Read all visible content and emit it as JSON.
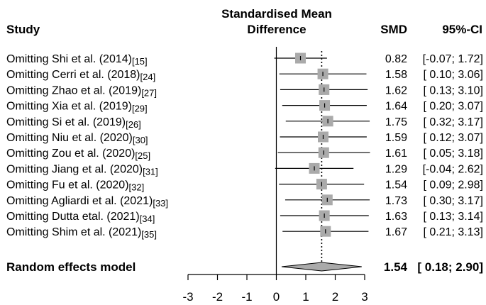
{
  "chart_data": {
    "type": "forest",
    "header": {
      "study": "Study",
      "plot_title_line1": "Standardised Mean",
      "plot_title_line2": "Difference",
      "smd": "SMD",
      "ci": "95%-CI"
    },
    "rows": [
      {
        "study": "Omitting Shi et al. (2014)",
        "ref": "[15]",
        "smd": 0.82,
        "lower": -0.07,
        "upper": 1.72,
        "smd_text": "0.82",
        "ci_text": "[-0.07; 1.72]"
      },
      {
        "study": "Omitting Cerri et al. (2018)",
        "ref": "[24]",
        "smd": 1.58,
        "lower": 0.1,
        "upper": 3.06,
        "smd_text": "1.58",
        "ci_text": "[ 0.10; 3.06]"
      },
      {
        "study": "Omitting Zhao et al. (2019)",
        "ref": "[27]",
        "smd": 1.62,
        "lower": 0.13,
        "upper": 3.1,
        "smd_text": "1.62",
        "ci_text": "[ 0.13; 3.10]"
      },
      {
        "study": "Omitting Xia et al. (2019)",
        "ref": "[29]",
        "smd": 1.64,
        "lower": 0.2,
        "upper": 3.07,
        "smd_text": "1.64",
        "ci_text": "[ 0.20; 3.07]"
      },
      {
        "study": "Omitting Si et al. (2019)",
        "ref": "[26]",
        "smd": 1.75,
        "lower": 0.32,
        "upper": 3.17,
        "smd_text": "1.75",
        "ci_text": "[ 0.32; 3.17]"
      },
      {
        "study": "Omitting Niu et al. (2020)",
        "ref": "[30]",
        "smd": 1.59,
        "lower": 0.12,
        "upper": 3.07,
        "smd_text": "1.59",
        "ci_text": "[ 0.12; 3.07]"
      },
      {
        "study": "Omitting Zou et al. (2020)",
        "ref": "[25]",
        "smd": 1.61,
        "lower": 0.05,
        "upper": 3.18,
        "smd_text": "1.61",
        "ci_text": "[ 0.05; 3.18]"
      },
      {
        "study": "Omitting Jiang et al. (2020)",
        "ref": "[31]",
        "smd": 1.29,
        "lower": -0.04,
        "upper": 2.62,
        "smd_text": "1.29",
        "ci_text": "[-0.04; 2.62]"
      },
      {
        "study": "Omitting Fu et al. (2020)",
        "ref": "[32]",
        "smd": 1.54,
        "lower": 0.09,
        "upper": 2.98,
        "smd_text": "1.54",
        "ci_text": "[ 0.09; 2.98]"
      },
      {
        "study": "Omitting Agliardi et al. (2021)",
        "ref": "[33]",
        "smd": 1.73,
        "lower": 0.3,
        "upper": 3.17,
        "smd_text": "1.73",
        "ci_text": "[ 0.30; 3.17]"
      },
      {
        "study": "Omitting Dutta etal. (2021)",
        "ref": "[34]",
        "smd": 1.63,
        "lower": 0.13,
        "upper": 3.14,
        "smd_text": "1.63",
        "ci_text": "[ 0.13; 3.14]"
      },
      {
        "study": "Omitting Shim et al. (2021)",
        "ref": "[35]",
        "smd": 1.67,
        "lower": 0.21,
        "upper": 3.13,
        "smd_text": "1.67",
        "ci_text": "[ 0.21; 3.13]"
      }
    ],
    "summary": {
      "label": "Random effects model",
      "smd": 1.54,
      "lower": 0.18,
      "upper": 2.9,
      "smd_text": "1.54",
      "ci_text": "[ 0.18; 2.90]"
    },
    "xlim": [
      -3,
      3
    ],
    "x_ticks": [
      "-3",
      "-2",
      "-1",
      "0",
      "1",
      "2",
      "3"
    ],
    "reference_line": 0,
    "summary_line": 1.54,
    "colors": {
      "box": "#aaaaaa",
      "diamond": "#aaaaaa",
      "line": "#000000"
    }
  }
}
